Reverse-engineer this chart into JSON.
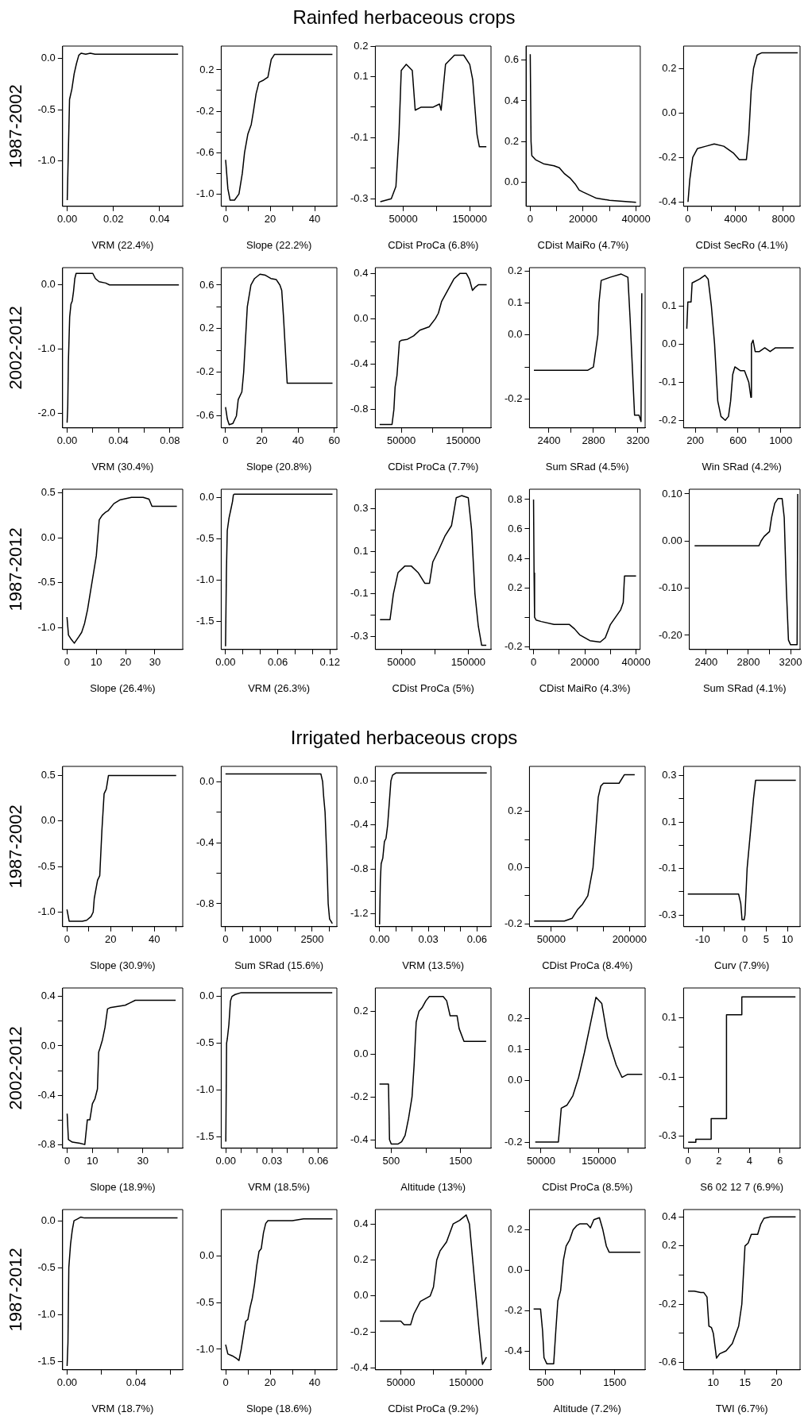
{
  "chart_data": [
    {
      "type": "line",
      "ylabel": "1987-2002",
      "xlabel": "VRM (22.4%)",
      "color": "#000000",
      "xlim": [
        -0.002,
        0.05
      ],
      "xticks": [
        {
          "value": 0,
          "label": "0.00"
        },
        0.02,
        0.04
      ],
      "ylim": [
        -1.44,
        0.12
      ],
      "yticks": [
        {
          "value": -1,
          "label": "-1.0"
        },
        -0.5,
        {
          "value": 0,
          "label": "0.0"
        }
      ],
      "x": [
        0,
        0.0005,
        0.001,
        0.002,
        0.003,
        0.004,
        0.005,
        0.006,
        0.008,
        0.01,
        0.012,
        0.048
      ],
      "values": [
        -1.38,
        -0.9,
        -0.4,
        -0.3,
        -0.15,
        -0.05,
        0.03,
        0.05,
        0.04,
        0.05,
        0.04,
        0.04
      ]
    },
    {
      "type": "line",
      "xlabel": "Slope (22.2%)",
      "color": "#000000",
      "xlim": [
        -2,
        50
      ],
      "xticks": [
        0,
        {
          "value": 10,
          "label": null
        },
        20,
        {
          "value": 30,
          "label": null
        },
        40
      ],
      "ylim": [
        -1.12,
        0.43
      ],
      "yticks": [
        {
          "value": -1,
          "label": "-1.0"
        },
        {
          "value": -0.8,
          "label": null
        },
        -0.6,
        {
          "value": -0.4,
          "label": null
        },
        -0.2,
        {
          "value": 0,
          "label": null
        },
        0.2
      ],
      "x": [
        0,
        1,
        2,
        4,
        6,
        7.5,
        8.5,
        10,
        11.5,
        12.5,
        13.7,
        15,
        17,
        19,
        20.5,
        22,
        48
      ],
      "values": [
        -0.67,
        -0.95,
        -1.06,
        -1.06,
        -1.0,
        -0.8,
        -0.6,
        -0.42,
        -0.33,
        -0.2,
        -0.03,
        0.08,
        0.1,
        0.13,
        0.3,
        0.35,
        0.35
      ]
    },
    {
      "type": "line",
      "title": "Rainfed herbaceous crops",
      "xlabel": "CDist ProCa (6.8%)",
      "color": "#000000",
      "xlim": [
        8000,
        182000
      ],
      "xticks": [
        50000,
        {
          "value": 100000,
          "label": null
        },
        150000
      ],
      "ylim": [
        -0.325,
        0.2
      ],
      "yticks": [
        -0.3,
        {
          "value": -0.2,
          "label": null
        },
        -0.1,
        {
          "value": 0,
          "label": null
        },
        0.1,
        0.2
      ],
      "x": [
        15500,
        32000,
        39000,
        43600,
        47000,
        54500,
        63600,
        68000,
        77000,
        95000,
        104500,
        107000,
        113600,
        127000,
        141000,
        150000,
        154500,
        161000,
        164500,
        175000
      ],
      "values": [
        -0.31,
        -0.3,
        -0.26,
        -0.09,
        0.12,
        0.14,
        0.12,
        -0.01,
        0,
        0,
        0.01,
        -0.01,
        0.14,
        0.17,
        0.17,
        0.14,
        0.09,
        -0.09,
        -0.13,
        -0.13
      ]
    },
    {
      "type": "line",
      "xlabel": "CDist MaiRo (4.7%)",
      "color": "#000000",
      "xlim": [
        -1600,
        41600
      ],
      "xticks": [
        0,
        {
          "value": 10000,
          "label": null
        },
        20000,
        {
          "value": 30000,
          "label": null
        },
        40000
      ],
      "ylim": [
        -0.12,
        0.67
      ],
      "yticks": [
        {
          "value": 0,
          "label": "0.0"
        },
        0.2,
        0.4,
        0.6
      ],
      "x": [
        0,
        300,
        600,
        2000,
        5000,
        9000,
        11000,
        13000,
        15000,
        17000,
        18500,
        20000,
        25000,
        30000,
        40000
      ],
      "values": [
        0.63,
        0.2,
        0.13,
        0.11,
        0.09,
        0.08,
        0.07,
        0.04,
        0.02,
        -0.01,
        -0.04,
        -0.05,
        -0.08,
        -0.09,
        -0.1
      ]
    },
    {
      "type": "line",
      "xlabel": "CDist SecRo (4.1%)",
      "color": "#000000",
      "xlim": [
        -370,
        9400
      ],
      "xticks": [
        0,
        {
          "value": 2000,
          "label": null
        },
        4000,
        {
          "value": 6000,
          "label": null
        },
        8000
      ],
      "ylim": [
        -0.42,
        0.3
      ],
      "yticks": [
        -0.4,
        -0.2,
        {
          "value": 0,
          "label": "0.0"
        },
        0.2
      ],
      "x": [
        0,
        150,
        400,
        800,
        1500,
        2200,
        3000,
        3800,
        4300,
        4900,
        5100,
        5300,
        5500,
        5800,
        6200,
        9200
      ],
      "values": [
        -0.4,
        -0.3,
        -0.2,
        -0.16,
        -0.15,
        -0.14,
        -0.15,
        -0.18,
        -0.21,
        -0.21,
        -0.1,
        0.1,
        0.2,
        0.26,
        0.27,
        0.27
      ]
    },
    {
      "type": "line",
      "ylabel": "2002-2012",
      "xlabel": "VRM (30.4%)",
      "color": "#000000",
      "xlim": [
        -0.0035,
        0.09
      ],
      "xticks": [
        {
          "value": 0,
          "label": "0.00"
        },
        {
          "value": 0.02,
          "label": null
        },
        0.04,
        {
          "value": 0.06,
          "label": null
        },
        0.08
      ],
      "ylim": [
        -2.23,
        0.27
      ],
      "yticks": [
        {
          "value": -2,
          "label": "-2.0"
        },
        {
          "value": -1,
          "label": "-1.0"
        },
        {
          "value": 0,
          "label": "0.0"
        }
      ],
      "x": [
        0,
        0.0005,
        0.001,
        0.002,
        0.003,
        0.004,
        0.005,
        0.006,
        0.007,
        0.012,
        0.02,
        0.022,
        0.025,
        0.03,
        0.033,
        0.087
      ],
      "values": [
        -2.15,
        -1.9,
        -1.2,
        -0.5,
        -0.3,
        -0.25,
        -0.1,
        0.1,
        0.18,
        0.18,
        0.18,
        0.1,
        0.05,
        0.03,
        0,
        0
      ]
    },
    {
      "type": "line",
      "xlabel": "Slope (20.8%)",
      "color": "#000000",
      "xlim": [
        -2.4,
        61.4
      ],
      "xticks": [
        0,
        20,
        40,
        60
      ],
      "ylim": [
        -0.71,
        0.76
      ],
      "yticks": [
        -0.6,
        {
          "value": -0.4,
          "label": null
        },
        -0.2,
        {
          "value": 0,
          "label": null
        },
        0.2,
        {
          "value": 0.4,
          "label": null
        },
        0.6
      ],
      "x": [
        0,
        1,
        2,
        4,
        6,
        7,
        9,
        10,
        11,
        12,
        14,
        16,
        19,
        22,
        25,
        28,
        30,
        31,
        32,
        33,
        34,
        59
      ],
      "values": [
        -0.52,
        -0.63,
        -0.68,
        -0.67,
        -0.6,
        -0.45,
        -0.38,
        -0.2,
        0.1,
        0.4,
        0.6,
        0.66,
        0.7,
        0.69,
        0.66,
        0.65,
        0.6,
        0.55,
        0.3,
        0,
        -0.3,
        -0.3
      ]
    },
    {
      "type": "line",
      "xlabel": "CDist ProCa (7.7%)",
      "color": "#000000",
      "xlim": [
        8000,
        195000
      ],
      "xticks": [
        50000,
        {
          "value": 100000,
          "label": null
        },
        150000
      ],
      "ylim": [
        -0.96,
        0.45
      ],
      "yticks": [
        -0.8,
        {
          "value": -0.6,
          "label": null
        },
        -0.4,
        {
          "value": -0.2,
          "label": null
        },
        {
          "value": 0,
          "label": "0.0"
        },
        {
          "value": 0.2,
          "label": null
        },
        0.4
      ],
      "x": [
        15000,
        35000,
        38000,
        40000,
        43000,
        47000,
        50000,
        60000,
        70000,
        80000,
        95000,
        105000,
        110000,
        115000,
        125000,
        135000,
        145000,
        155000,
        160000,
        165000,
        170000,
        175000,
        188000
      ],
      "values": [
        -0.93,
        -0.93,
        -0.8,
        -0.6,
        -0.5,
        -0.2,
        -0.19,
        -0.18,
        -0.15,
        -0.1,
        -0.07,
        0,
        0.05,
        0.15,
        0.25,
        0.35,
        0.4,
        0.4,
        0.35,
        0.25,
        0.28,
        0.3,
        0.3
      ]
    },
    {
      "type": "line",
      "xlabel": "Sum SRad (4.5%)",
      "color": "#000000",
      "xlim": [
        2225,
        3265
      ],
      "xticks": [
        2400,
        {
          "value": 2600,
          "label": null
        },
        2800,
        {
          "value": 3000,
          "label": null
        },
        3200
      ],
      "ylim": [
        -0.29,
        0.21
      ],
      "yticks": [
        -0.2,
        {
          "value": -0.1,
          "label": null
        },
        {
          "value": 0,
          "label": "0.0"
        },
        0.1,
        0.2
      ],
      "x": [
        2265,
        2750,
        2800,
        2820,
        2840,
        2850,
        2870,
        2950,
        3050,
        3110,
        3130,
        3150,
        3170,
        3210,
        3228,
        3235
      ],
      "values": [
        -0.11,
        -0.11,
        -0.1,
        -0.05,
        0,
        0.1,
        0.17,
        0.18,
        0.19,
        0.18,
        0.05,
        -0.1,
        -0.25,
        -0.25,
        -0.27,
        0.13
      ]
    },
    {
      "type": "line",
      "xlabel": "Win SRad (4.2%)",
      "color": "#000000",
      "xlim": [
        90,
        1180
      ],
      "xticks": [
        200,
        {
          "value": 400,
          "label": null
        },
        600,
        {
          "value": 800,
          "label": null
        },
        1000
      ],
      "ylim": [
        -0.22,
        0.2
      ],
      "yticks": [
        -0.2,
        -0.1,
        {
          "value": 0,
          "label": "0.0"
        },
        0.1
      ],
      "x": [
        120,
        130,
        160,
        170,
        240,
        290,
        320,
        350,
        380,
        410,
        440,
        480,
        510,
        530,
        550,
        570,
        620,
        660,
        700,
        720,
        725,
        740,
        760,
        800,
        850,
        900,
        950,
        1000,
        1120
      ],
      "values": [
        0.04,
        0.11,
        0.11,
        0.16,
        0.17,
        0.18,
        0.17,
        0.1,
        0,
        -0.15,
        -0.19,
        -0.2,
        -0.19,
        -0.15,
        -0.08,
        -0.06,
        -0.07,
        -0.07,
        -0.1,
        -0.14,
        0,
        0.01,
        -0.02,
        -0.02,
        -0.01,
        -0.02,
        -0.01,
        -0.01,
        -0.01
      ]
    },
    {
      "type": "line",
      "ylabel": "1987-2012",
      "xlabel": "Slope (26.4%)",
      "color": "#000000",
      "xlim": [
        -1.5,
        39.5
      ],
      "xticks": [
        0,
        10,
        20,
        30
      ],
      "ylim": [
        -1.24,
        0.54
      ],
      "yticks": [
        {
          "value": -1,
          "label": "-1.0"
        },
        -0.5,
        {
          "value": 0,
          "label": "0.0"
        },
        0.5
      ],
      "x": [
        0,
        0.5,
        1.5,
        2.5,
        4,
        5,
        6,
        7,
        8,
        9,
        10,
        10.5,
        11,
        12,
        13,
        14,
        16,
        18,
        22,
        26,
        28,
        29,
        37.5
      ],
      "values": [
        -0.88,
        -1.08,
        -1.13,
        -1.17,
        -1.1,
        -1.05,
        -0.95,
        -0.8,
        -0.6,
        -0.4,
        -0.2,
        0,
        0.2,
        0.25,
        0.28,
        0.3,
        0.38,
        0.42,
        0.45,
        0.45,
        0.43,
        0.35,
        0.35
      ]
    },
    {
      "type": "line",
      "xlabel": "VRM (26.3%)",
      "color": "#000000",
      "xlim": [
        -0.005,
        0.128
      ],
      "xticks": [
        {
          "value": 0,
          "label": "0.00"
        },
        {
          "value": 0.02,
          "label": null
        },
        {
          "value": 0.04,
          "label": null
        },
        0.06,
        {
          "value": 0.08,
          "label": null
        },
        {
          "value": 0.1,
          "label": null
        },
        0.12
      ],
      "ylim": [
        -1.84,
        0.1
      ],
      "yticks": [
        -1.5,
        {
          "value": -1,
          "label": "-1.0"
        },
        -0.5,
        {
          "value": 0,
          "label": "0.0"
        }
      ],
      "x": [
        0,
        0.001,
        0.002,
        0.004,
        0.006,
        0.008,
        0.009,
        0.01,
        0.123
      ],
      "values": [
        -1.8,
        -0.9,
        -0.4,
        -0.25,
        -0.15,
        -0.05,
        0.03,
        0.04,
        0.04
      ]
    },
    {
      "type": "line",
      "xlabel": "CDist ProCa (5%)",
      "color": "#000000",
      "xlim": [
        11000,
        184000
      ],
      "xticks": [
        50000,
        {
          "value": 100000,
          "label": null
        },
        150000
      ],
      "ylim": [
        -0.36,
        0.39
      ],
      "yticks": [
        -0.3,
        {
          "value": -0.2,
          "label": null
        },
        -0.1,
        {
          "value": 0,
          "label": null
        },
        0.1,
        {
          "value": 0.2,
          "label": null
        },
        0.3
      ],
      "x": [
        18000,
        33000,
        38000,
        45000,
        55000,
        65000,
        75000,
        85000,
        92000,
        97000,
        105000,
        115000,
        125000,
        132000,
        140000,
        150000,
        155000,
        160000,
        165000,
        170000,
        177000
      ],
      "values": [
        -0.22,
        -0.22,
        -0.1,
        0,
        0.03,
        0.03,
        0,
        -0.05,
        -0.05,
        0.05,
        0.1,
        0.17,
        0.22,
        0.35,
        0.36,
        0.35,
        0.2,
        -0.1,
        -0.25,
        -0.34,
        -0.34
      ]
    },
    {
      "type": "line",
      "xlabel": "CDist MaiRo (4.3%)",
      "color": "#000000",
      "xlim": [
        -1600,
        41600
      ],
      "xticks": [
        0,
        {
          "value": 10000,
          "label": null
        },
        20000,
        {
          "value": 30000,
          "label": null
        },
        40000
      ],
      "ylim": [
        -0.22,
        0.87
      ],
      "yticks": [
        -0.2,
        {
          "value": 0,
          "label": null
        },
        0.2,
        0.4,
        0.6,
        0.8
      ],
      "x": [
        0,
        200,
        400,
        1000,
        3000,
        8000,
        14000,
        16000,
        18000,
        22000,
        26000,
        28000,
        30000,
        32000,
        34000,
        35000,
        35500,
        40000
      ],
      "values": [
        0.8,
        0.3,
        0,
        -0.02,
        -0.03,
        -0.05,
        -0.05,
        -0.08,
        -0.12,
        -0.16,
        -0.17,
        -0.14,
        -0.05,
        0,
        0.05,
        0.1,
        0.28,
        0.28
      ]
    },
    {
      "type": "line",
      "xlabel": "Sum SRad (4.1%)",
      "color": "#000000",
      "xlim": [
        2240,
        3290
      ],
      "xticks": [
        2400,
        {
          "value": 2600,
          "label": null
        },
        2800,
        {
          "value": 3000,
          "label": null
        },
        3200
      ],
      "ylim": [
        -0.23,
        0.11
      ],
      "yticks": [
        {
          "value": -0.2,
          "label": "-0.20"
        },
        {
          "value": -0.1,
          "label": "-0.10"
        },
        {
          "value": 0,
          "label": "0.00"
        },
        {
          "value": 0.1,
          "label": "0.10"
        }
      ],
      "x": [
        2290,
        2900,
        2920,
        2950,
        3000,
        3020,
        3050,
        3080,
        3120,
        3140,
        3160,
        3180,
        3200,
        3245,
        3262,
        3268
      ],
      "values": [
        -0.01,
        -0.01,
        0,
        0.01,
        0.02,
        0.05,
        0.08,
        0.09,
        0.09,
        0.05,
        -0.1,
        -0.21,
        -0.22,
        -0.22,
        -0.22,
        0.1
      ]
    },
    {
      "type": "line",
      "ylabel": "1987-2002",
      "xlabel": "Slope (30.9%)",
      "color": "#000000",
      "xlim": [
        -2,
        53
      ],
      "xticks": [
        0,
        {
          "value": 10,
          "label": null
        },
        20,
        {
          "value": 30,
          "label": null
        },
        40,
        {
          "value": 50,
          "label": null
        }
      ],
      "ylim": [
        -1.16,
        0.6
      ],
      "yticks": [
        {
          "value": -1,
          "label": "-1.0"
        },
        -0.5,
        {
          "value": 0,
          "label": "0.0"
        },
        0.5
      ],
      "x": [
        0,
        1,
        3,
        7,
        9,
        11,
        12,
        12.5,
        14,
        15,
        16,
        17,
        18,
        19,
        50
      ],
      "values": [
        -0.97,
        -1.1,
        -1.1,
        -1.1,
        -1.09,
        -1.05,
        -1.0,
        -0.85,
        -0.65,
        -0.6,
        -0.1,
        0.3,
        0.35,
        0.5,
        0.5
      ]
    },
    {
      "type": "line",
      "xlabel": "Sum SRad (15.6%)",
      "color": "#000000",
      "xlim": [
        -124,
        3210
      ],
      "xticks": [
        0,
        {
          "value": 500,
          "label": null
        },
        1000,
        {
          "value": 1500,
          "label": null
        },
        {
          "value": 2000,
          "label": null
        },
        2500,
        {
          "value": 3000,
          "label": null
        }
      ],
      "ylim": [
        -0.95,
        0.1
      ],
      "yticks": [
        -0.8,
        {
          "value": -0.6,
          "label": null
        },
        -0.4,
        {
          "value": -0.2,
          "label": null
        },
        {
          "value": 0,
          "label": "0.0"
        }
      ],
      "x": [
        0,
        2750,
        2800,
        2830,
        2870,
        2920,
        2960,
        3000,
        3080
      ],
      "values": [
        0.05,
        0.05,
        0,
        -0.1,
        -0.2,
        -0.5,
        -0.8,
        -0.9,
        -0.93
      ]
    },
    {
      "type": "line",
      "title": "Irrigated herbaceous crops",
      "xlabel": "VRM (13.5%)",
      "color": "#000000",
      "xlim": [
        -0.0026,
        0.0686
      ],
      "xticks": [
        {
          "value": 0,
          "label": "0.00"
        },
        {
          "value": 0.01,
          "label": null
        },
        {
          "value": 0.02,
          "label": null
        },
        0.03,
        {
          "value": 0.04,
          "label": null
        },
        {
          "value": 0.05,
          "label": null
        },
        0.06
      ],
      "ylim": [
        -1.32,
        0.13
      ],
      "yticks": [
        -1.2,
        {
          "value": -1,
          "label": null
        },
        -0.8,
        {
          "value": -0.6,
          "label": null
        },
        -0.4,
        {
          "value": -0.2,
          "label": null
        },
        {
          "value": 0,
          "label": "0.0"
        }
      ],
      "x": [
        0,
        0.0005,
        0.001,
        0.002,
        0.003,
        0.004,
        0.005,
        0.006,
        0.007,
        0.008,
        0.01,
        0.066
      ],
      "values": [
        -1.3,
        -0.9,
        -0.75,
        -0.7,
        -0.55,
        -0.52,
        -0.4,
        -0.2,
        0,
        0.05,
        0.07,
        0.07
      ]
    },
    {
      "type": "line",
      "xlabel": "CDist ProCa (8.4%)",
      "color": "#000000",
      "xlim": [
        8000,
        230000
      ],
      "xticks": [
        50000,
        {
          "value": 100000,
          "label": null
        },
        {
          "value": 150000,
          "label": null
        },
        200000
      ],
      "ylim": [
        -0.21,
        0.36
      ],
      "yticks": [
        -0.2,
        {
          "value": -0.1,
          "label": null
        },
        {
          "value": 0,
          "label": "0.0"
        },
        {
          "value": 0.1,
          "label": null
        },
        0.2
      ],
      "x": [
        17000,
        75000,
        90000,
        100000,
        110000,
        120000,
        130000,
        140000,
        145000,
        150000,
        180000,
        190000,
        210000
      ],
      "values": [
        -0.19,
        -0.19,
        -0.18,
        -0.15,
        -0.13,
        -0.1,
        0,
        0.25,
        0.29,
        0.3,
        0.3,
        0.33,
        0.33
      ]
    },
    {
      "type": "line",
      "xlabel": "Curv (7.9%)",
      "color": "#000000",
      "xlim": [
        -14.5,
        13
      ],
      "xticks": [
        -10,
        {
          "value": -5,
          "label": null
        },
        0,
        5,
        10
      ],
      "ylim": [
        -0.35,
        0.34
      ],
      "yticks": [
        -0.3,
        {
          "value": -0.2,
          "label": null
        },
        -0.1,
        {
          "value": 0,
          "label": null
        },
        0.1,
        {
          "value": 0.2,
          "label": null
        },
        0.3
      ],
      "x": [
        -13.5,
        -1.5,
        -1,
        -0.7,
        -0.2,
        0,
        0.5,
        1,
        1.5,
        2,
        2.5,
        12
      ],
      "values": [
        -0.21,
        -0.21,
        -0.25,
        -0.32,
        -0.32,
        -0.3,
        -0.1,
        0,
        0.1,
        0.2,
        0.28,
        0.28
      ]
    },
    {
      "type": "line",
      "ylabel": "2002-2012",
      "xlabel": "Slope (18.9%)",
      "color": "#000000",
      "xlim": [
        -1.8,
        45.8
      ],
      "xticks": [
        0,
        10,
        {
          "value": 20,
          "label": null
        },
        30,
        {
          "value": 40,
          "label": null
        }
      ],
      "ylim": [
        -0.83,
        0.47
      ],
      "yticks": [
        -0.8,
        {
          "value": -0.6,
          "label": null
        },
        -0.4,
        {
          "value": -0.2,
          "label": null
        },
        {
          "value": 0,
          "label": "0.0"
        },
        {
          "value": 0.2,
          "label": null
        },
        0.4
      ],
      "x": [
        0,
        0.5,
        2,
        5,
        7,
        8,
        9,
        10,
        11,
        12,
        12.5,
        13,
        14,
        15,
        16,
        17,
        20,
        23,
        25,
        27,
        43
      ],
      "values": [
        -0.55,
        -0.76,
        -0.78,
        -0.79,
        -0.8,
        -0.6,
        -0.6,
        -0.47,
        -0.43,
        -0.35,
        -0.05,
        -0.02,
        0.05,
        0.15,
        0.3,
        0.31,
        0.32,
        0.33,
        0.35,
        0.37,
        0.37
      ]
    },
    {
      "type": "line",
      "xlabel": "VRM (18.5%)",
      "color": "#000000",
      "xlim": [
        -0.003,
        0.072
      ],
      "xticks": [
        {
          "value": 0,
          "label": "0.00"
        },
        {
          "value": 0.01,
          "label": null
        },
        {
          "value": 0.02,
          "label": null
        },
        0.03,
        {
          "value": 0.04,
          "label": null
        },
        {
          "value": 0.05,
          "label": null
        },
        0.06
      ],
      "ylim": [
        -1.62,
        0.09
      ],
      "yticks": [
        -1.5,
        {
          "value": -1,
          "label": "-1.0"
        },
        -0.5,
        {
          "value": 0,
          "label": "0.0"
        }
      ],
      "x": [
        0,
        0.0005,
        0.001,
        0.002,
        0.003,
        0.004,
        0.006,
        0.01,
        0.069
      ],
      "values": [
        -1.55,
        -0.5,
        -0.45,
        -0.3,
        -0.05,
        0,
        0.02,
        0.04,
        0.04
      ]
    },
    {
      "type": "line",
      "xlabel": "Altitude (13%)",
      "color": "#000000",
      "xlim": [
        270,
        1940
      ],
      "xticks": [
        500,
        {
          "value": 1000,
          "label": null
        },
        1500
      ],
      "ylim": [
        -0.44,
        0.31
      ],
      "yticks": [
        -0.4,
        -0.2,
        {
          "value": 0,
          "label": "0.0"
        },
        0.2
      ],
      "x": [
        330,
        460,
        475,
        500,
        600,
        650,
        700,
        750,
        800,
        830,
        860,
        900,
        950,
        1000,
        1050,
        1250,
        1300,
        1350,
        1450,
        1480,
        1550,
        1870
      ],
      "values": [
        -0.14,
        -0.14,
        -0.4,
        -0.42,
        -0.42,
        -0.41,
        -0.38,
        -0.3,
        -0.2,
        -0.05,
        0.15,
        0.2,
        0.22,
        0.25,
        0.27,
        0.27,
        0.25,
        0.18,
        0.18,
        0.12,
        0.06,
        0.06
      ]
    },
    {
      "type": "line",
      "xlabel": "CDist ProCa (8.5%)",
      "color": "#000000",
      "xlim": [
        30000,
        230000
      ],
      "xticks": [
        50000,
        {
          "value": 100000,
          "label": null
        },
        150000,
        {
          "value": 200000,
          "label": null
        }
      ],
      "ylim": [
        -0.22,
        0.3
      ],
      "yticks": [
        -0.2,
        {
          "value": -0.1,
          "label": null
        },
        {
          "value": 0,
          "label": "0.0"
        },
        0.1,
        0.2
      ],
      "x": [
        40000,
        80000,
        85000,
        95000,
        105000,
        115000,
        125000,
        135000,
        145000,
        155000,
        165000,
        180000,
        190000,
        200000,
        225000
      ],
      "values": [
        -0.2,
        -0.2,
        -0.09,
        -0.08,
        -0.05,
        0.01,
        0.09,
        0.18,
        0.27,
        0.25,
        0.14,
        0.05,
        0.01,
        0.02,
        0.02
      ]
    },
    {
      "type": "line",
      "xlabel": "S6 02 12 7 (6.9%)",
      "color": "#000000",
      "xlim": [
        -0.3,
        7.3
      ],
      "xticks": [
        0,
        2,
        4,
        6
      ],
      "ylim": [
        -0.34,
        0.2
      ],
      "yticks": [
        -0.3,
        {
          "value": -0.2,
          "label": null
        },
        -0.1,
        {
          "value": 0,
          "label": null
        },
        0.1
      ],
      "x": [
        0,
        0.5,
        0.5,
        1.5,
        1.5,
        2.5,
        2.5,
        3.5,
        3.5,
        7
      ],
      "values": [
        -0.32,
        -0.32,
        -0.31,
        -0.31,
        -0.24,
        -0.24,
        0.11,
        0.11,
        0.17,
        0.17
      ]
    },
    {
      "type": "line",
      "ylabel": "1987-2012",
      "xlabel": "VRM (18.7%)",
      "color": "#000000",
      "xlim": [
        -0.0026,
        0.067
      ],
      "xticks": [
        {
          "value": 0,
          "label": "0.00"
        },
        {
          "value": 0.02,
          "label": null
        },
        0.04,
        {
          "value": 0.06,
          "label": null
        }
      ],
      "ylim": [
        -1.59,
        0.12
      ],
      "yticks": [
        -1.5,
        {
          "value": -1,
          "label": "-1.0"
        },
        -0.5,
        {
          "value": 0,
          "label": "0.0"
        }
      ],
      "x": [
        0,
        0.0005,
        0.001,
        0.002,
        0.003,
        0.004,
        0.006,
        0.008,
        0.01,
        0.064
      ],
      "values": [
        -1.55,
        -1.3,
        -0.5,
        -0.25,
        -0.1,
        0,
        0.02,
        0.04,
        0.03,
        0.03
      ]
    },
    {
      "type": "line",
      "xlabel": "Slope (18.6%)",
      "color": "#000000",
      "xlim": [
        -2,
        50
      ],
      "xticks": [
        0,
        {
          "value": 10,
          "label": null
        },
        20,
        {
          "value": 30,
          "label": null
        },
        40
      ],
      "ylim": [
        -1.22,
        0.5
      ],
      "yticks": [
        {
          "value": -1,
          "label": "-1.0"
        },
        -0.5,
        {
          "value": 0,
          "label": "0.0"
        }
      ],
      "x": [
        0,
        1,
        3,
        5,
        6,
        7,
        8,
        9,
        10,
        11,
        12,
        13,
        14,
        15,
        16,
        17,
        18,
        19,
        30,
        35,
        48
      ],
      "values": [
        -0.95,
        -1.05,
        -1.07,
        -1.1,
        -1.12,
        -1.0,
        -0.85,
        -0.7,
        -0.68,
        -0.55,
        -0.45,
        -0.3,
        -0.1,
        0.05,
        0.08,
        0.25,
        0.35,
        0.38,
        0.38,
        0.4,
        0.4
      ]
    },
    {
      "type": "line",
      "xlabel": "CDist ProCa (9.2%)",
      "color": "#000000",
      "xlim": [
        11000,
        188000
      ],
      "xticks": [
        50000,
        {
          "value": 100000,
          "label": null
        },
        150000
      ],
      "ylim": [
        -0.41,
        0.48
      ],
      "yticks": [
        -0.4,
        -0.2,
        {
          "value": 0,
          "label": "0.0"
        },
        0.2,
        0.4
      ],
      "x": [
        18000,
        50000,
        55000,
        65000,
        70000,
        80000,
        90000,
        95000,
        100000,
        105000,
        110000,
        120000,
        125000,
        130000,
        140000,
        150000,
        155000,
        160000,
        165000,
        170000,
        175000,
        181000
      ],
      "values": [
        -0.14,
        -0.14,
        -0.16,
        -0.16,
        -0.1,
        -0.03,
        -0.01,
        0,
        0.05,
        0.2,
        0.25,
        0.3,
        0.35,
        0.4,
        0.42,
        0.45,
        0.4,
        0.2,
        0,
        -0.2,
        -0.38,
        -0.34
      ]
    },
    {
      "type": "line",
      "xlabel": "Altitude (7.2%)",
      "color": "#000000",
      "xlim": [
        270,
        1940
      ],
      "xticks": [
        500,
        {
          "value": 1000,
          "label": null
        },
        1500
      ],
      "ylim": [
        -0.49,
        0.3
      ],
      "yticks": [
        -0.4,
        -0.2,
        {
          "value": 0,
          "label": "0.0"
        },
        0.2
      ],
      "x": [
        330,
        430,
        460,
        480,
        520,
        620,
        650,
        680,
        720,
        760,
        800,
        850,
        900,
        950,
        1000,
        1100,
        1150,
        1200,
        1280,
        1330,
        1380,
        1420,
        1870
      ],
      "values": [
        -0.19,
        -0.19,
        -0.3,
        -0.43,
        -0.46,
        -0.46,
        -0.3,
        -0.15,
        -0.1,
        0.05,
        0.12,
        0.15,
        0.2,
        0.22,
        0.23,
        0.23,
        0.21,
        0.25,
        0.26,
        0.2,
        0.12,
        0.09,
        0.09
      ]
    },
    {
      "type": "line",
      "xlabel": "TWI (6.7%)",
      "color": "#000000",
      "xlim": [
        5.3,
        23.7
      ],
      "xticks": [
        10,
        15,
        20
      ],
      "ylim": [
        -0.65,
        0.45
      ],
      "yticks": [
        -0.6,
        {
          "value": -0.4,
          "label": null
        },
        -0.2,
        {
          "value": 0,
          "label": null
        },
        0.2,
        0.4
      ],
      "x": [
        6,
        7,
        8,
        8.5,
        9,
        9.3,
        9.7,
        10,
        10.5,
        11,
        12,
        13,
        14,
        14.5,
        15,
        15.5,
        16,
        17,
        17.5,
        18,
        19,
        23
      ],
      "values": [
        -0.11,
        -0.11,
        -0.12,
        -0.12,
        -0.15,
        -0.35,
        -0.36,
        -0.4,
        -0.57,
        -0.54,
        -0.52,
        -0.47,
        -0.35,
        -0.2,
        0.2,
        0.22,
        0.28,
        0.28,
        0.35,
        0.39,
        0.4,
        0.4
      ]
    }
  ]
}
